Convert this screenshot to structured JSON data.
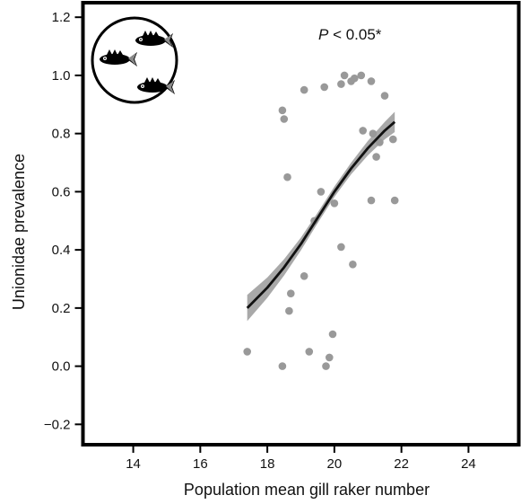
{
  "chart_data": {
    "type": "scatter",
    "xlabel": "Population mean gill raker number",
    "ylabel": "Unionidae prevalence",
    "xlim": [
      12.5,
      25.5
    ],
    "ylim": [
      -0.27,
      1.25
    ],
    "x_ticks": [
      14,
      16,
      18,
      20,
      22,
      24
    ],
    "y_ticks": [
      -0.2,
      0.0,
      0.2,
      0.4,
      0.6,
      0.8,
      1.0,
      1.2
    ],
    "annotation": {
      "italic": "P",
      "rest": " < 0.05*"
    },
    "grid": false,
    "point_color": "#999999",
    "line_color": "#111111",
    "band_color": "#8c8c8c",
    "points": [
      {
        "x": 17.4,
        "y": 0.05
      },
      {
        "x": 18.45,
        "y": 0.0
      },
      {
        "x": 18.45,
        "y": 0.88
      },
      {
        "x": 18.5,
        "y": 0.85
      },
      {
        "x": 18.6,
        "y": 0.65
      },
      {
        "x": 18.65,
        "y": 0.19
      },
      {
        "x": 18.7,
        "y": 0.25
      },
      {
        "x": 19.1,
        "y": 0.95
      },
      {
        "x": 19.1,
        "y": 0.31
      },
      {
        "x": 19.25,
        "y": 0.05
      },
      {
        "x": 19.4,
        "y": 0.5
      },
      {
        "x": 19.6,
        "y": 0.6
      },
      {
        "x": 19.7,
        "y": 0.96
      },
      {
        "x": 19.75,
        "y": 0.0
      },
      {
        "x": 19.85,
        "y": 0.03
      },
      {
        "x": 19.95,
        "y": 0.11
      },
      {
        "x": 20.0,
        "y": 0.56
      },
      {
        "x": 20.2,
        "y": 0.41
      },
      {
        "x": 20.2,
        "y": 0.97
      },
      {
        "x": 20.3,
        "y": 1.0
      },
      {
        "x": 20.5,
        "y": 0.98
      },
      {
        "x": 20.55,
        "y": 0.35
      },
      {
        "x": 20.6,
        "y": 0.99
      },
      {
        "x": 20.8,
        "y": 1.0
      },
      {
        "x": 20.85,
        "y": 0.81
      },
      {
        "x": 21.1,
        "y": 0.57
      },
      {
        "x": 21.1,
        "y": 0.98
      },
      {
        "x": 21.15,
        "y": 0.8
      },
      {
        "x": 21.25,
        "y": 0.72
      },
      {
        "x": 21.35,
        "y": 0.77
      },
      {
        "x": 21.5,
        "y": 0.93
      },
      {
        "x": 21.75,
        "y": 0.78
      },
      {
        "x": 21.8,
        "y": 0.57
      }
    ],
    "fit_line": {
      "x": [
        17.4,
        18.0,
        18.5,
        19.0,
        19.5,
        20.0,
        20.5,
        21.0,
        21.5,
        21.8
      ],
      "y": [
        0.2,
        0.27,
        0.34,
        0.42,
        0.51,
        0.6,
        0.68,
        0.75,
        0.81,
        0.84
      ],
      "band_halfwidth": [
        0.045,
        0.035,
        0.028,
        0.022,
        0.018,
        0.018,
        0.02,
        0.025,
        0.03,
        0.035
      ]
    }
  }
}
